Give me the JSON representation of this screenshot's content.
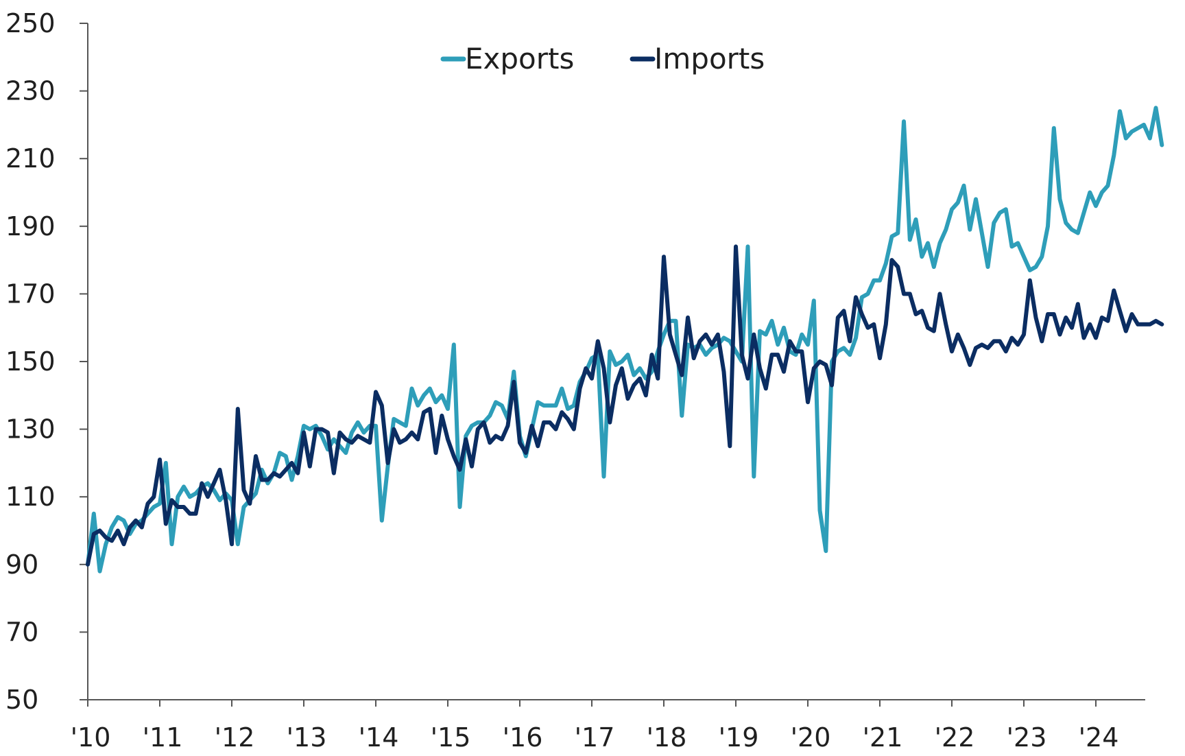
{
  "chart_data": {
    "type": "line",
    "title": "",
    "xlabel": "",
    "ylabel": "",
    "x_start": "2010-01",
    "x_end": "2024-09",
    "x_tick_labels": [
      "'10",
      "'11",
      "'12",
      "'13",
      "'14",
      "'15",
      "'16",
      "'17",
      "'18",
      "'19",
      "'20",
      "'21",
      "'22",
      "'23",
      "'24"
    ],
    "y_ticks": [
      50,
      70,
      90,
      110,
      130,
      150,
      170,
      190,
      210,
      230,
      250
    ],
    "ylim": [
      50,
      250
    ],
    "grid": false,
    "legend_position": "top-center",
    "series": [
      {
        "name": "Exports",
        "color": "#2E9EB9",
        "values": [
          90,
          105,
          88,
          96,
          101,
          104,
          103,
          99,
          102,
          103,
          105,
          107,
          108,
          120,
          96,
          110,
          113,
          110,
          111,
          113,
          114,
          112,
          109,
          111,
          109,
          96,
          107,
          109,
          111,
          118,
          114,
          117,
          123,
          122,
          115,
          122,
          131,
          130,
          131,
          128,
          124,
          127,
          125,
          123,
          129,
          132,
          129,
          131,
          131,
          103,
          119,
          133,
          132,
          131,
          142,
          137,
          140,
          142,
          138,
          140,
          136,
          155,
          107,
          128,
          131,
          132,
          132,
          134,
          138,
          137,
          133,
          147,
          128,
          122,
          130,
          138,
          137,
          137,
          137,
          142,
          136,
          137,
          144,
          147,
          151,
          152,
          116,
          153,
          149,
          150,
          152,
          146,
          148,
          145,
          147,
          153,
          158,
          162,
          162,
          134,
          155,
          154,
          155,
          152,
          154,
          155,
          157,
          156,
          153,
          150,
          184,
          116,
          159,
          158,
          162,
          155,
          160,
          153,
          152,
          158,
          155,
          168,
          106,
          94,
          150,
          153,
          154,
          152,
          157,
          169,
          170,
          174,
          174,
          179,
          187,
          188,
          221,
          186,
          192,
          181,
          185,
          178,
          185,
          189,
          195,
          197,
          202,
          189,
          198,
          188,
          178,
          191,
          194,
          195,
          184,
          185,
          181,
          177,
          178,
          181,
          190,
          219,
          198,
          191,
          189,
          188,
          194,
          200,
          196,
          200,
          202,
          211,
          224,
          216,
          218,
          219,
          220,
          216,
          225,
          214
        ]
      },
      {
        "name": "Imports",
        "color": "#0B2D62",
        "values": [
          90,
          99,
          100,
          98,
          97,
          100,
          96,
          101,
          103,
          101,
          108,
          110,
          121,
          102,
          109,
          107,
          107,
          105,
          105,
          114,
          110,
          114,
          118,
          109,
          96,
          136,
          112,
          108,
          122,
          115,
          115,
          117,
          116,
          118,
          120,
          117,
          129,
          119,
          130,
          130,
          129,
          117,
          129,
          127,
          126,
          128,
          127,
          126,
          141,
          137,
          120,
          130,
          126,
          127,
          129,
          127,
          135,
          136,
          123,
          134,
          127,
          122,
          118,
          127,
          119,
          130,
          132,
          126,
          128,
          127,
          131,
          144,
          126,
          123,
          131,
          125,
          132,
          132,
          130,
          135,
          133,
          130,
          142,
          148,
          145,
          156,
          148,
          132,
          143,
          148,
          139,
          143,
          145,
          140,
          152,
          145,
          181,
          158,
          152,
          146,
          163,
          151,
          156,
          158,
          155,
          158,
          147,
          125,
          184,
          152,
          145,
          158,
          148,
          142,
          152,
          152,
          147,
          156,
          153,
          153,
          138,
          148,
          150,
          149,
          143,
          163,
          165,
          156,
          169,
          164,
          160,
          161,
          151,
          161,
          180,
          178,
          170,
          170,
          164,
          165,
          160,
          159,
          170,
          161,
          153,
          158,
          154,
          149,
          154,
          155,
          154,
          156,
          156,
          153,
          157,
          155,
          158,
          174,
          163,
          156,
          164,
          164,
          158,
          163,
          160,
          167,
          157,
          161,
          157,
          163,
          162,
          171,
          165,
          159,
          164,
          161,
          161,
          161,
          162,
          161
        ]
      }
    ]
  }
}
